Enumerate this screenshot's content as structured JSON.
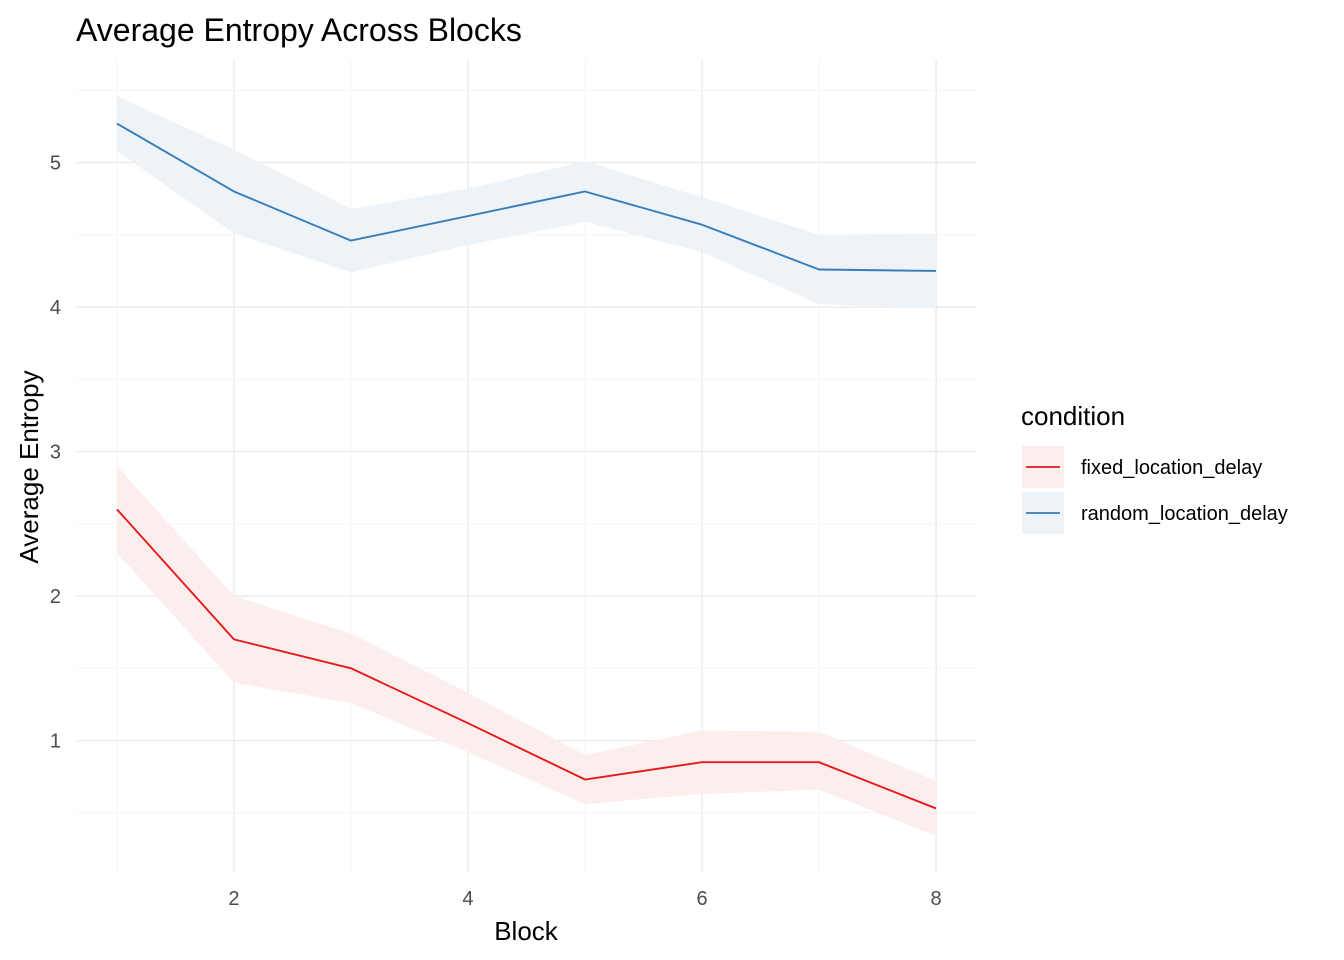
{
  "chart_data": {
    "type": "line",
    "title": "Average Entropy Across Blocks",
    "xlabel": "Block",
    "ylabel": "Average Entropy",
    "x": [
      1,
      2,
      3,
      4,
      5,
      6,
      7,
      8
    ],
    "xlim": [
      0.65,
      8.35
    ],
    "ylim": [
      0.09,
      5.71
    ],
    "x_ticks": [
      2,
      4,
      6,
      8
    ],
    "y_ticks": [
      1,
      2,
      3,
      4,
      5
    ],
    "grid": true,
    "legend": {
      "title": "condition",
      "position": "right"
    },
    "series": [
      {
        "name": "fixed_location_delay",
        "color": "#e41a1c",
        "ribbon_color": "#fdeeee",
        "values": [
          2.6,
          1.7,
          1.5,
          1.12,
          0.73,
          0.85,
          0.85,
          0.53
        ],
        "lower": [
          2.3,
          1.4,
          1.26,
          0.92,
          0.56,
          0.63,
          0.66,
          0.34
        ],
        "upper": [
          2.9,
          2.0,
          1.74,
          1.33,
          0.9,
          1.07,
          1.06,
          0.72
        ]
      },
      {
        "name": "random_location_delay",
        "color": "#377eb8",
        "ribbon_color": "#eef3f8",
        "values": [
          5.27,
          4.8,
          4.46,
          4.63,
          4.8,
          4.57,
          4.26,
          4.25
        ],
        "lower": [
          5.08,
          4.51,
          4.24,
          4.43,
          4.59,
          4.38,
          4.02,
          3.99
        ],
        "upper": [
          5.46,
          5.09,
          4.68,
          4.82,
          5.01,
          4.76,
          4.5,
          4.51
        ]
      }
    ]
  }
}
